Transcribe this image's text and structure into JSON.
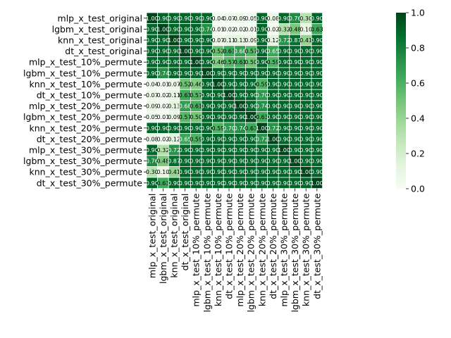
{
  "chart_data": {
    "type": "heatmap",
    "title": "",
    "rows": [
      "mlp_x_test_original",
      "lgbm_x_test_original",
      "knn_x_test_original",
      "dt_x_test_original",
      "mlp_x_test_10%_permute",
      "lgbm_x_test_10%_permute",
      "knn_x_test_10%_permute",
      "dt_x_test_10%_permute",
      "mlp_x_test_20%_permute",
      "lgbm_x_test_20%_permute",
      "knn_x_test_20%_permute",
      "dt_x_test_20%_permute",
      "mlp_x_test_30%_permute",
      "lgbm_x_test_30%_permute",
      "knn_x_test_30%_permute",
      "dt_x_test_30%_permute"
    ],
    "columns": [
      "mlp_x_test_original",
      "lgbm_x_test_original",
      "knn_x_test_original",
      "dt_x_test_original",
      "mlp_x_test_10%_permute",
      "lgbm_x_test_10%_permute",
      "knn_x_test_10%_permute",
      "dt_x_test_10%_permute",
      "mlp_x_test_20%_permute",
      "lgbm_x_test_20%_permute",
      "knn_x_test_20%_permute",
      "dt_x_test_20%_permute",
      "mlp_x_test_30%_permute",
      "lgbm_x_test_30%_permute",
      "knn_x_test_30%_permute",
      "dt_x_test_30%_permute"
    ],
    "values": [
      [
        1.0,
        0.9,
        0.9,
        0.9,
        0.9,
        0.9,
        0.04,
        0.07,
        0.09,
        0.05,
        0.9,
        0.08,
        0.9,
        0.76,
        0.3,
        0.9
      ],
      [
        0.9,
        1.0,
        0.9,
        0.9,
        0.9,
        0.74,
        0.01,
        0.02,
        0.02,
        0.01,
        0.9,
        0.02,
        0.32,
        0.48,
        0.1,
        0.63
      ],
      [
        0.9,
        0.9,
        1.0,
        0.9,
        0.9,
        0.9,
        0.07,
        0.11,
        0.13,
        0.09,
        0.9,
        0.12,
        0.72,
        0.87,
        0.41,
        0.9
      ],
      [
        0.9,
        0.9,
        0.9,
        1.0,
        0.9,
        0.9,
        0.52,
        0.63,
        0.68,
        0.57,
        0.9,
        0.65,
        0.9,
        0.9,
        0.9,
        0.9
      ],
      [
        0.9,
        0.9,
        0.9,
        0.9,
        1.0,
        0.9,
        0.46,
        0.57,
        0.61,
        0.5,
        0.9,
        0.59,
        0.9,
        0.9,
        0.9,
        0.9
      ],
      [
        0.9,
        0.74,
        0.9,
        0.9,
        0.9,
        1.0,
        0.9,
        0.9,
        0.9,
        0.9,
        0.9,
        0.9,
        0.9,
        0.9,
        0.9,
        0.9
      ],
      [
        0.04,
        0.01,
        0.07,
        0.52,
        0.46,
        0.9,
        1.0,
        0.9,
        0.9,
        0.9,
        0.59,
        0.9,
        0.9,
        0.9,
        0.9,
        0.9
      ],
      [
        0.07,
        0.02,
        0.11,
        0.63,
        0.57,
        0.9,
        0.9,
        1.0,
        0.9,
        0.9,
        0.7,
        0.9,
        0.9,
        0.9,
        0.9,
        0.9
      ],
      [
        0.09,
        0.02,
        0.13,
        0.68,
        0.61,
        0.9,
        0.9,
        0.9,
        1.0,
        0.9,
        0.74,
        0.9,
        0.9,
        0.9,
        0.9,
        0.9
      ],
      [
        0.05,
        0.01,
        0.09,
        0.57,
        0.5,
        0.9,
        0.9,
        0.9,
        0.9,
        1.0,
        0.63,
        0.9,
        0.9,
        0.9,
        0.9,
        0.9
      ],
      [
        0.9,
        0.9,
        0.9,
        0.9,
        0.9,
        0.9,
        0.59,
        0.7,
        0.74,
        0.63,
        1.0,
        0.72,
        0.9,
        0.9,
        0.9,
        0.9
      ],
      [
        0.08,
        0.02,
        0.12,
        0.65,
        0.59,
        0.9,
        0.9,
        0.9,
        0.9,
        0.9,
        0.72,
        1.0,
        0.9,
        0.9,
        0.9,
        0.9
      ],
      [
        0.9,
        0.32,
        0.72,
        0.9,
        0.9,
        0.9,
        0.9,
        0.9,
        0.9,
        0.9,
        0.9,
        0.9,
        1.0,
        0.9,
        0.9,
        0.9
      ],
      [
        0.76,
        0.48,
        0.87,
        0.9,
        0.9,
        0.9,
        0.9,
        0.9,
        0.9,
        0.9,
        0.9,
        0.9,
        0.9,
        1.0,
        0.9,
        0.9
      ],
      [
        0.3,
        0.1,
        0.41,
        0.9,
        0.9,
        0.9,
        0.9,
        0.9,
        0.9,
        0.9,
        0.9,
        0.9,
        0.9,
        0.9,
        1.0,
        0.9
      ],
      [
        0.9,
        0.63,
        0.9,
        0.9,
        0.9,
        0.9,
        0.9,
        0.9,
        0.9,
        0.9,
        0.9,
        0.9,
        0.9,
        0.9,
        0.9,
        1.0
      ]
    ],
    "colormap": "Greens",
    "colormap_stops": [
      "#f7fcf5",
      "#e5f5e0",
      "#c7e9c0",
      "#a1d99b",
      "#74c476",
      "#41ab5d",
      "#238b45",
      "#006d2c",
      "#00441b"
    ],
    "vmin": 0.0,
    "vmax": 1.0,
    "annotation_format": "2 decimals",
    "colorbar": {
      "ticks": [
        0.0,
        0.2,
        0.4,
        0.6,
        0.8,
        1.0
      ],
      "tick_labels": [
        "0.0",
        "0.2",
        "0.4",
        "0.6",
        "0.8",
        "1.0"
      ],
      "position": "right"
    }
  }
}
